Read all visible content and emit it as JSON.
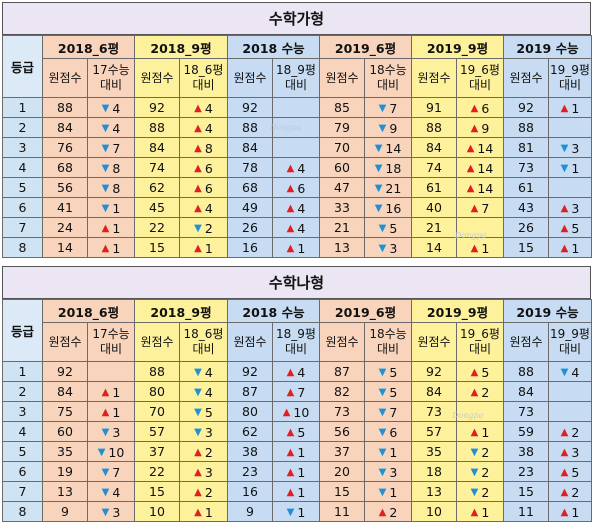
{
  "watermark": "Dongpa",
  "colors": {
    "up": "#e02020",
    "down": "#1e90d6"
  },
  "sections": [
    {
      "title": "수학가형",
      "grade_label": "등급",
      "exams": [
        {
          "name": "2018_6평",
          "score_label": "원점수",
          "cmp_label": "17수능 대비"
        },
        {
          "name": "2018_9평",
          "score_label": "원점수",
          "cmp_label": "18_6평 대비"
        },
        {
          "name": "2018 수능",
          "score_label": "원점수",
          "cmp_label": "18_9평 대비"
        },
        {
          "name": "2019_6평",
          "score_label": "원점수",
          "cmp_label": "18수능 대비"
        },
        {
          "name": "2019_9평",
          "score_label": "원점수",
          "cmp_label": "19_6평 대비"
        },
        {
          "name": "2019 수능",
          "score_label": "원점수",
          "cmp_label": "19_9평 대비"
        }
      ],
      "rows": [
        {
          "grade": "1",
          "cells": [
            [
              "88",
              "down",
              "4"
            ],
            [
              "92",
              "up",
              "4"
            ],
            [
              "92",
              "",
              ""
            ],
            [
              "85",
              "down",
              "7"
            ],
            [
              "91",
              "up",
              "6"
            ],
            [
              "92",
              "up",
              "1"
            ]
          ]
        },
        {
          "grade": "2",
          "cells": [
            [
              "84",
              "down",
              "4"
            ],
            [
              "88",
              "up",
              "4"
            ],
            [
              "88",
              "",
              ""
            ],
            [
              "79",
              "down",
              "9"
            ],
            [
              "88",
              "up",
              "9"
            ],
            [
              "88",
              "",
              ""
            ]
          ]
        },
        {
          "grade": "3",
          "cells": [
            [
              "76",
              "down",
              "7"
            ],
            [
              "84",
              "up",
              "8"
            ],
            [
              "84",
              "",
              ""
            ],
            [
              "70",
              "down",
              "14"
            ],
            [
              "84",
              "up",
              "14"
            ],
            [
              "81",
              "down",
              "3"
            ]
          ]
        },
        {
          "grade": "4",
          "cells": [
            [
              "68",
              "down",
              "8"
            ],
            [
              "74",
              "up",
              "6"
            ],
            [
              "78",
              "up",
              "4"
            ],
            [
              "60",
              "down",
              "18"
            ],
            [
              "74",
              "up",
              "14"
            ],
            [
              "73",
              "down",
              "1"
            ]
          ]
        },
        {
          "grade": "5",
          "cells": [
            [
              "56",
              "down",
              "8"
            ],
            [
              "62",
              "up",
              "6"
            ],
            [
              "68",
              "up",
              "6"
            ],
            [
              "47",
              "down",
              "21"
            ],
            [
              "61",
              "up",
              "14"
            ],
            [
              "61",
              "",
              " "
            ]
          ]
        },
        {
          "grade": "6",
          "cells": [
            [
              "41",
              "down",
              "1"
            ],
            [
              "45",
              "up",
              "4"
            ],
            [
              "49",
              "up",
              "4"
            ],
            [
              "33",
              "down",
              "16"
            ],
            [
              "40",
              "up",
              "7"
            ],
            [
              "43",
              "up",
              "3"
            ]
          ]
        },
        {
          "grade": "7",
          "cells": [
            [
              "24",
              "up",
              "1"
            ],
            [
              "22",
              "down",
              "2"
            ],
            [
              "26",
              "up",
              "4"
            ],
            [
              "21",
              "down",
              "5"
            ],
            [
              "21",
              "",
              ""
            ],
            [
              "26",
              "up",
              "5"
            ]
          ]
        },
        {
          "grade": "8",
          "cells": [
            [
              "14",
              "up",
              "1"
            ],
            [
              "15",
              "up",
              "1"
            ],
            [
              "16",
              "up",
              "1"
            ],
            [
              "13",
              "down",
              "3"
            ],
            [
              "14",
              "up",
              "1"
            ],
            [
              "15",
              "up",
              "1"
            ]
          ]
        }
      ]
    },
    {
      "title": "수학나형",
      "grade_label": "등급",
      "exams": [
        {
          "name": "2018_6평",
          "score_label": "원점수",
          "cmp_label": "17수능 대비"
        },
        {
          "name": "2018_9평",
          "score_label": "원점수",
          "cmp_label": "18_6평 대비"
        },
        {
          "name": "2018 수능",
          "score_label": "원점수",
          "cmp_label": "18_9평 대비"
        },
        {
          "name": "2019_6평",
          "score_label": "원점수",
          "cmp_label": "18수능 대비"
        },
        {
          "name": "2019_9평",
          "score_label": "원점수",
          "cmp_label": "19_6평 대비"
        },
        {
          "name": "2019 수능",
          "score_label": "원점수",
          "cmp_label": "19_9평 대비"
        }
      ],
      "rows": [
        {
          "grade": "1",
          "cells": [
            [
              "92",
              "",
              ""
            ],
            [
              "88",
              "down",
              "4"
            ],
            [
              "92",
              "up",
              "4"
            ],
            [
              "87",
              "down",
              "5"
            ],
            [
              "92",
              "up",
              "5"
            ],
            [
              "88",
              "down",
              "4"
            ]
          ]
        },
        {
          "grade": "2",
          "cells": [
            [
              "84",
              "up",
              "1"
            ],
            [
              "80",
              "down",
              "4"
            ],
            [
              "87",
              "up",
              "7"
            ],
            [
              "82",
              "down",
              "5"
            ],
            [
              "84",
              "up",
              "2"
            ],
            [
              "84",
              "",
              ""
            ]
          ]
        },
        {
          "grade": "3",
          "cells": [
            [
              "75",
              "up",
              "1"
            ],
            [
              "70",
              "down",
              "5"
            ],
            [
              "80",
              "up",
              "10"
            ],
            [
              "73",
              "down",
              "7"
            ],
            [
              "73",
              "",
              ""
            ],
            [
              "73",
              "",
              ""
            ]
          ]
        },
        {
          "grade": "4",
          "cells": [
            [
              "60",
              "down",
              "3"
            ],
            [
              "57",
              "down",
              "3"
            ],
            [
              "62",
              "up",
              "5"
            ],
            [
              "56",
              "down",
              "6"
            ],
            [
              "57",
              "up",
              "1"
            ],
            [
              "59",
              "up",
              "2"
            ]
          ]
        },
        {
          "grade": "5",
          "cells": [
            [
              "35",
              "down",
              "10"
            ],
            [
              "37",
              "up",
              "2"
            ],
            [
              "38",
              "up",
              "1"
            ],
            [
              "37",
              "down",
              "1"
            ],
            [
              "35",
              "down",
              "2"
            ],
            [
              "38",
              "up",
              "3"
            ]
          ]
        },
        {
          "grade": "6",
          "cells": [
            [
              "19",
              "down",
              "7"
            ],
            [
              "22",
              "up",
              "3"
            ],
            [
              "23",
              "up",
              "1"
            ],
            [
              "20",
              "down",
              "3"
            ],
            [
              "18",
              "down",
              "2"
            ],
            [
              "23",
              "up",
              "5"
            ]
          ]
        },
        {
          "grade": "7",
          "cells": [
            [
              "13",
              "down",
              "4"
            ],
            [
              "15",
              "up",
              "2"
            ],
            [
              "16",
              "up",
              "1"
            ],
            [
              "15",
              "down",
              "1"
            ],
            [
              "13",
              "down",
              "2"
            ],
            [
              "15",
              "up",
              "2"
            ]
          ]
        },
        {
          "grade": "8",
          "cells": [
            [
              "9",
              "down",
              "3"
            ],
            [
              "10",
              "up",
              "1"
            ],
            [
              "9",
              "down",
              "1"
            ],
            [
              "11",
              "up",
              "2"
            ],
            [
              "10",
              "up",
              "1"
            ],
            [
              "11",
              "up",
              "1"
            ]
          ]
        }
      ]
    }
  ]
}
